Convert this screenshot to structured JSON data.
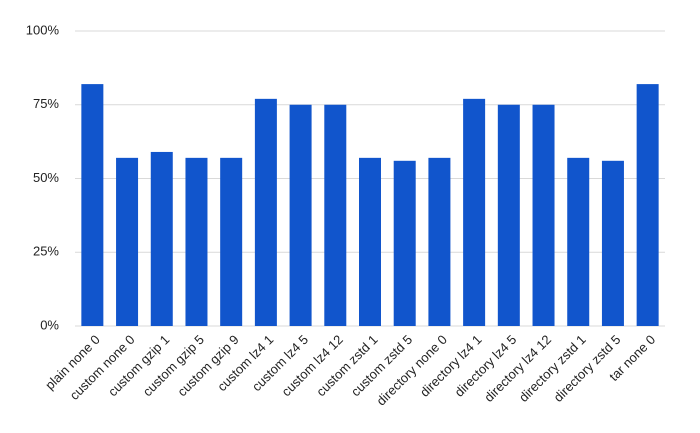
{
  "chart_data": {
    "type": "bar",
    "categories": [
      "plain none 0",
      "custom none 0",
      "custom gzip 1",
      "custom gzip 5",
      "custom gzip 9",
      "custom lz4 1",
      "custom lz4 5",
      "custom lz4 12",
      "custom zstd 1",
      "custom zstd 5",
      "directory none 0",
      "directory lz4 1",
      "directory lz4 5",
      "directory lz4 12",
      "directory zstd 1",
      "directory zstd 5",
      "tar none 0"
    ],
    "values": [
      82,
      57,
      59,
      57,
      57,
      77,
      75,
      75,
      57,
      56,
      57,
      77,
      75,
      75,
      57,
      56,
      82
    ],
    "color": "#1155cc",
    "ylim": [
      0,
      100
    ],
    "yticks": [
      {
        "value": 0,
        "label": "0%"
      },
      {
        "value": 25,
        "label": "25%"
      },
      {
        "value": 50,
        "label": "50%"
      },
      {
        "value": 75,
        "label": "75%"
      },
      {
        "value": 100,
        "label": "100%"
      }
    ],
    "grid": true
  }
}
